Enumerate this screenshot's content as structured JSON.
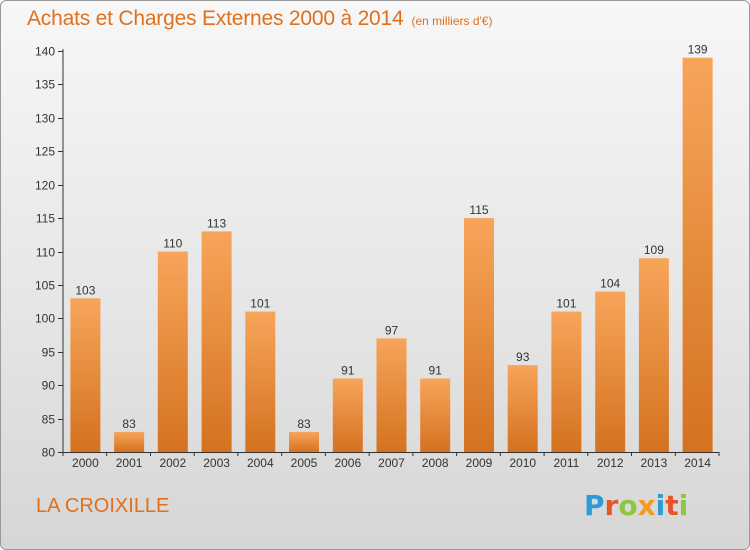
{
  "title": "Achats et Charges Externes 2000 à 2014",
  "unit_note": "(en milliers d'€)",
  "place_name": "LA CROIXILLE",
  "logo": {
    "text": "Proxiti",
    "letter_colors": [
      "#2e9bd6",
      "#e8542a",
      "#8dc63f",
      "#f39c1e",
      "#2e9bd6",
      "#e8542a",
      "#8dc63f"
    ]
  },
  "colors": {
    "bar_top": "#f7a55a",
    "bar_bottom": "#d4721f",
    "title": "#e0701c"
  },
  "chart_data": {
    "type": "bar",
    "categories": [
      "2000",
      "2001",
      "2002",
      "2003",
      "2004",
      "2005",
      "2006",
      "2007",
      "2008",
      "2009",
      "2010",
      "2011",
      "2012",
      "2013",
      "2014"
    ],
    "values": [
      103,
      83,
      110,
      113,
      101,
      83,
      91,
      97,
      91,
      115,
      93,
      101,
      104,
      109,
      139
    ],
    "ylim": [
      80,
      140
    ],
    "yticks": [
      80,
      85,
      90,
      95,
      100,
      105,
      110,
      115,
      120,
      125,
      130,
      135,
      140
    ],
    "grid": false
  }
}
